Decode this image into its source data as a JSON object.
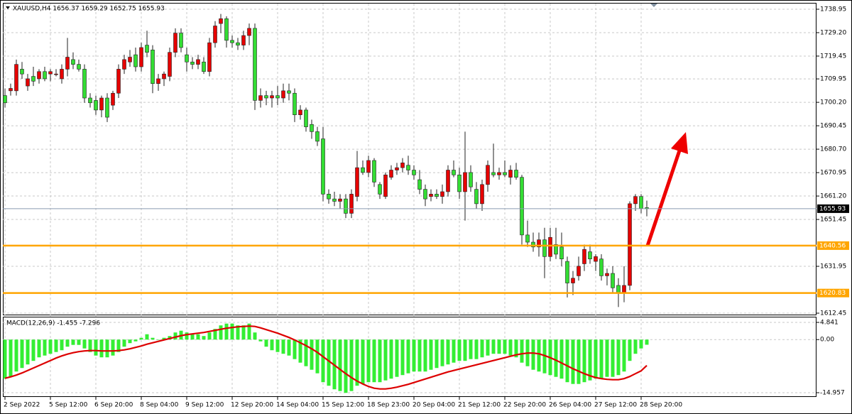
{
  "chart_data": [
    {
      "type": "candlestick",
      "title": "XAUUSD,H4  1656.37 1659.29 1652.75 1655.93",
      "categories": [
        "2 Sep 2022",
        null,
        null,
        null,
        null,
        null,
        null,
        null,
        "5 Sep 12:00",
        null,
        null,
        null,
        null,
        null,
        null,
        null,
        "6 Sep 20:00",
        null,
        null,
        null,
        null,
        null,
        null,
        null,
        "8 Sep 04:00",
        null,
        null,
        null,
        null,
        null,
        null,
        null,
        "9 Sep 12:00",
        null,
        null,
        null,
        null,
        null,
        null,
        null,
        "12 Sep 20:00",
        null,
        null,
        null,
        null,
        null,
        null,
        null,
        "14 Sep 04:00",
        null,
        null,
        null,
        null,
        null,
        null,
        null,
        "15 Sep 12:00",
        null,
        null,
        null,
        null,
        null,
        null,
        null,
        "18 Sep 23:00",
        null,
        null,
        null,
        null,
        null,
        null,
        null,
        "20 Sep 04:00",
        null,
        null,
        null,
        null,
        null,
        null,
        null,
        "21 Sep 12:00",
        null,
        null,
        null,
        null,
        null,
        null,
        null,
        "22 Sep 20:00",
        null,
        null,
        null,
        null,
        null,
        null,
        null,
        "26 Sep 04:00",
        null,
        null,
        null,
        null,
        null,
        null,
        null,
        "27 Sep 12:00",
        null,
        null,
        null,
        null,
        null,
        null,
        null,
        "28 Sep 20:00",
        null
      ],
      "open": [
        1703,
        1705,
        1705,
        1714,
        1707,
        1711,
        1710,
        1713,
        1712,
        1712,
        1710,
        1714,
        1718,
        1716,
        1714,
        1702,
        1701,
        1697,
        1702,
        1699,
        1704,
        1714,
        1717,
        1720,
        1715,
        1724,
        1722,
        1708,
        1710,
        1711,
        1721,
        1729,
        1720,
        1717,
        1716,
        1717,
        1713,
        1725,
        1733,
        1735,
        1726,
        1725,
        1724,
        1728,
        1731,
        1701,
        1703,
        1702,
        1703,
        1702,
        1705,
        1704,
        1695,
        1697,
        1691,
        1688,
        1685,
        1662,
        1660,
        1659,
        1660,
        1654,
        1661,
        1673,
        1671,
        1676,
        1666,
        1661,
        1669,
        1672,
        1673,
        1674,
        1672,
        1668,
        1664,
        1661,
        1662,
        1661,
        1663,
        1672,
        1670,
        1663,
        1671,
        1664,
        1658,
        1666,
        1671,
        1670,
        1671,
        1669,
        1672,
        1669,
        1645,
        1642,
        1640,
        1643,
        1636,
        1641,
        1640,
        1634,
        1625,
        1628,
        1633,
        1638,
        1634,
        1635,
        1628,
        1629,
        1624,
        1621,
        1624,
        1658,
        1661,
        1656.37
      ],
      "high": [
        1706,
        1708,
        1718,
        1717,
        1712,
        1715,
        1714,
        1715,
        1714,
        1714,
        1716,
        1727,
        1721,
        1718,
        1716,
        1704,
        1703,
        1703,
        1704,
        1705,
        1716,
        1720,
        1722,
        1723,
        1725,
        1730,
        1724,
        1712,
        1713,
        1723,
        1731,
        1731,
        1723,
        1719,
        1720,
        1719,
        1727,
        1734,
        1737,
        1736,
        1728,
        1727,
        1730,
        1733,
        1733,
        1706,
        1705,
        1705,
        1707,
        1708,
        1708,
        1706,
        1699,
        1698,
        1693,
        1690,
        1690,
        1664,
        1663,
        1662,
        1662,
        1664,
        1680,
        1676,
        1678,
        1677,
        1667,
        1671,
        1674,
        1675,
        1677,
        1678,
        1674,
        1672,
        1666,
        1664,
        1664,
        1666,
        1674,
        1676,
        1673,
        1688,
        1674,
        1667,
        1668,
        1676,
        1683,
        1673,
        1676,
        1674,
        1675,
        1670,
        1651,
        1646,
        1646,
        1648,
        1648,
        1648,
        1646,
        1636,
        1630,
        1636,
        1641,
        1641,
        1637,
        1637,
        1631,
        1632,
        1627,
        1632,
        1659,
        1662,
        1662,
        1659.29
      ],
      "low": [
        1698,
        1703,
        1703,
        1710,
        1705,
        1707,
        1708,
        1709,
        1709,
        1711,
        1708,
        1711,
        1714,
        1713,
        1700,
        1698,
        1695,
        1694,
        1692,
        1697,
        1702,
        1712,
        1715,
        1713,
        1713,
        1719,
        1704,
        1705,
        1707,
        1709,
        1719,
        1721,
        1713,
        1714,
        1714,
        1712,
        1711,
        1723,
        1729,
        1723,
        1723,
        1722,
        1722,
        1724,
        1697,
        1698,
        1699,
        1698,
        1699,
        1700,
        1701,
        1692,
        1693,
        1688,
        1685,
        1682,
        1659,
        1658,
        1657,
        1656,
        1652,
        1652,
        1659,
        1670,
        1669,
        1665,
        1660,
        1660,
        1668,
        1670,
        1671,
        1670,
        1668,
        1662,
        1657,
        1659,
        1660,
        1658,
        1661,
        1669,
        1660,
        1651,
        1663,
        1656,
        1655,
        1663,
        1669,
        1668,
        1669,
        1666,
        1668,
        1641,
        1640,
        1638,
        1636,
        1627,
        1634,
        1635,
        1632,
        1619,
        1620,
        1626,
        1630,
        1633,
        1630,
        1626,
        1624,
        1621,
        1615,
        1617,
        1622,
        1655,
        1654,
        1652.75
      ],
      "close": [
        1700,
        1706,
        1716,
        1712,
        1710,
        1709,
        1713,
        1710,
        1713,
        1712,
        1714,
        1719,
        1716,
        1714,
        1702,
        1700,
        1697,
        1702,
        1694,
        1704,
        1714,
        1718,
        1719,
        1715,
        1723,
        1721,
        1708,
        1710,
        1712,
        1721,
        1729,
        1723,
        1717,
        1716,
        1718,
        1713,
        1725,
        1732,
        1735,
        1726,
        1725,
        1724,
        1728,
        1731,
        1701,
        1703,
        1702,
        1703,
        1702,
        1705,
        1704,
        1695,
        1697,
        1690,
        1688,
        1684,
        1662,
        1660,
        1659,
        1660,
        1654,
        1662,
        1673,
        1671,
        1676,
        1667,
        1662,
        1670,
        1672,
        1673,
        1675,
        1672,
        1670,
        1664,
        1660,
        1662,
        1661,
        1663,
        1672,
        1670,
        1663,
        1671,
        1665,
        1658,
        1666,
        1674,
        1670,
        1671,
        1670,
        1672,
        1669,
        1645,
        1642,
        1640,
        1643,
        1636,
        1644,
        1637,
        1635,
        1625,
        1627,
        1632,
        1639,
        1635,
        1636,
        1628,
        1629,
        1623,
        1621,
        1624,
        1658,
        1661,
        1656,
        1655.93
      ],
      "up_color": "#e60000",
      "down_color": "#33dd33",
      "ylim": [
        1611.86,
        1741.31
      ],
      "yticks": [
        1738.95,
        {
          "value": 1729.2,
          "label": "1729.20"
        },
        1719.45,
        1709.95,
        {
          "value": 1700.2,
          "label": "1700.20"
        },
        1690.45,
        {
          "value": 1680.7,
          "label": "1680.70"
        },
        1670.95,
        {
          "value": 1661.2,
          "label": "1661.20"
        },
        1651.45,
        1631.95,
        1612.45
      ],
      "grid": true,
      "hlines": [
        {
          "value": 1640.56,
          "color": "#ffa500"
        },
        {
          "value": 1620.83,
          "color": "#ffa500"
        }
      ],
      "last_price": 1655.93
    },
    {
      "type": "macd",
      "title": "MACD(12,26,9) -1.455 -7.296",
      "histogram": {
        "color": "#33ee33",
        "values": [
          -11,
          -10.5,
          -9,
          -8,
          -7,
          -6,
          -5,
          -4.5,
          -4,
          -3.5,
          -3,
          -2,
          -1.5,
          -1.5,
          -2.5,
          -3.5,
          -4.5,
          -5,
          -5,
          -4.5,
          -3.5,
          -2,
          -1,
          -0.5,
          0.5,
          1.5,
          0.5,
          0,
          0.5,
          1,
          2,
          2.5,
          2,
          1.5,
          1.5,
          1,
          2,
          3,
          4,
          4.5,
          4.5,
          4,
          4,
          4.5,
          2,
          -0.5,
          -2,
          -3,
          -3.5,
          -4,
          -4.5,
          -5.5,
          -6.5,
          -7.5,
          -8.5,
          -9.5,
          -12,
          -13,
          -14,
          -14.5,
          -15,
          -14.5,
          -13,
          -12.5,
          -12,
          -12,
          -12,
          -11.5,
          -11,
          -10.5,
          -10,
          -9.5,
          -9,
          -9,
          -9,
          -8.5,
          -8,
          -7.5,
          -7,
          -6.5,
          -6,
          -6,
          -5.5,
          -5.5,
          -5,
          -4.5,
          -4,
          -4,
          -4,
          -4.5,
          -5,
          -6.5,
          -7.5,
          -8.5,
          -9,
          -9.5,
          -10,
          -10.5,
          -11,
          -12,
          -12.5,
          -12.5,
          -12,
          -11.5,
          -11,
          -11,
          -10.5,
          -10.5,
          -10,
          -9,
          -6,
          -4,
          -2.5,
          -1.455
        ]
      },
      "signal": {
        "color": "#dd0000",
        "values": [
          -10.9,
          -10.5,
          -10,
          -9.4,
          -8.7,
          -8,
          -7.3,
          -6.6,
          -5.9,
          -5.2,
          -4.6,
          -4.1,
          -3.7,
          -3.4,
          -3.2,
          -3.1,
          -3.1,
          -3.2,
          -3.2,
          -3.2,
          -3.1,
          -2.9,
          -2.6,
          -2.2,
          -1.8,
          -1.3,
          -0.9,
          -0.5,
          -0.1,
          0.3,
          0.7,
          1.1,
          1.4,
          1.6,
          1.8,
          2,
          2.3,
          2.6,
          2.9,
          3.2,
          3.4,
          3.6,
          3.7,
          3.8,
          3.7,
          3.3,
          2.8,
          2.3,
          1.8,
          1.2,
          0.6,
          -0.1,
          -0.9,
          -1.7,
          -2.6,
          -3.6,
          -4.8,
          -6,
          -7.2,
          -8.4,
          -9.6,
          -10.7,
          -11.7,
          -12.5,
          -13.2,
          -13.7,
          -13.9,
          -13.9,
          -13.7,
          -13.4,
          -13,
          -12.6,
          -12.1,
          -11.6,
          -11.1,
          -10.6,
          -10.1,
          -9.6,
          -9.1,
          -8.7,
          -8.3,
          -7.9,
          -7.5,
          -7.1,
          -6.7,
          -6.3,
          -5.9,
          -5.5,
          -5.1,
          -4.7,
          -4.3,
          -4,
          -3.8,
          -3.8,
          -4,
          -4.5,
          -5.1,
          -5.8,
          -6.6,
          -7.4,
          -8.2,
          -8.9,
          -9.6,
          -10.2,
          -10.7,
          -11,
          -11.2,
          -11.3,
          -11.3,
          -11,
          -10.4,
          -9.6,
          -8.8,
          -7.296
        ]
      },
      "ylim": [
        -15.96,
        6.24
      ],
      "yticks": [
        4.841,
        {
          "value": 0,
          "label": "0.00"
        },
        -14.957
      ],
      "grid": true
    }
  ]
}
